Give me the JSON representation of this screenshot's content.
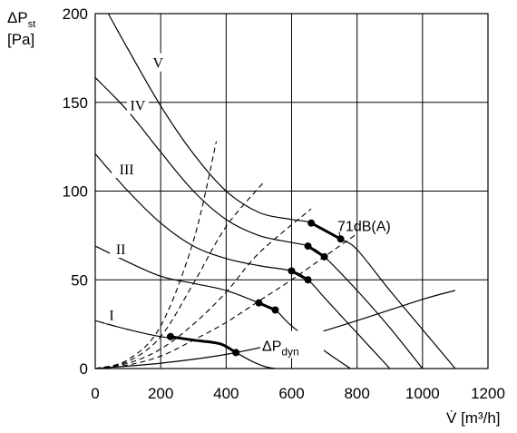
{
  "chart_data": {
    "type": "line",
    "y_axis": {
      "label_main": "ΔP",
      "label_sub": "st",
      "unit": "[Pa]",
      "ticks": [
        0,
        50,
        100,
        150,
        200
      ],
      "range": [
        0,
        200
      ]
    },
    "x_axis": {
      "label_main": "V̇",
      "unit": "[m³/h]",
      "ticks": [
        0,
        200,
        400,
        600,
        800,
        1000,
        1200
      ],
      "range": [
        0,
        1200
      ]
    },
    "grid": true,
    "series": [
      {
        "name": "I",
        "style": "solid",
        "points": [
          [
            0,
            27
          ],
          [
            100,
            22
          ],
          [
            200,
            18
          ],
          [
            300,
            16
          ],
          [
            380,
            14
          ],
          [
            430,
            9
          ],
          [
            480,
            4
          ],
          [
            520,
            1
          ],
          [
            550,
            0
          ]
        ]
      },
      {
        "name": "II",
        "style": "solid",
        "points": [
          [
            0,
            69
          ],
          [
            100,
            60
          ],
          [
            200,
            52
          ],
          [
            300,
            48
          ],
          [
            400,
            44
          ],
          [
            500,
            37
          ],
          [
            550,
            33
          ],
          [
            600,
            24
          ],
          [
            700,
            10
          ],
          [
            780,
            0
          ]
        ]
      },
      {
        "name": "III",
        "style": "solid",
        "points": [
          [
            0,
            121
          ],
          [
            100,
            100
          ],
          [
            200,
            82
          ],
          [
            300,
            69
          ],
          [
            400,
            62
          ],
          [
            500,
            58
          ],
          [
            600,
            55
          ],
          [
            650,
            50
          ],
          [
            700,
            40
          ],
          [
            800,
            20
          ],
          [
            900,
            0
          ]
        ]
      },
      {
        "name": "IV",
        "style": "solid",
        "points": [
          [
            0,
            164
          ],
          [
            100,
            145
          ],
          [
            200,
            122
          ],
          [
            300,
            100
          ],
          [
            400,
            84
          ],
          [
            500,
            75
          ],
          [
            600,
            71
          ],
          [
            650,
            69
          ],
          [
            700,
            63
          ],
          [
            800,
            44
          ],
          [
            900,
            23
          ],
          [
            1000,
            0
          ]
        ]
      },
      {
        "name": "V",
        "style": "solid",
        "points": [
          [
            40,
            200
          ],
          [
            100,
            180
          ],
          [
            200,
            148
          ],
          [
            300,
            121
          ],
          [
            400,
            100
          ],
          [
            500,
            88
          ],
          [
            600,
            84
          ],
          [
            660,
            82
          ],
          [
            750,
            73
          ],
          [
            800,
            67
          ],
          [
            900,
            44
          ],
          [
            1000,
            22
          ],
          [
            1100,
            0
          ]
        ]
      },
      {
        "name": "ΔPdyn",
        "style": "solid",
        "points": [
          [
            0,
            0
          ],
          [
            200,
            3
          ],
          [
            400,
            8
          ],
          [
            600,
            16
          ],
          [
            800,
            27
          ],
          [
            1000,
            39
          ],
          [
            1100,
            44
          ]
        ]
      }
    ],
    "system_lines": [
      {
        "style": "dashed",
        "points": [
          [
            0,
            0
          ],
          [
            100,
            5
          ],
          [
            200,
            24
          ],
          [
            300,
            72
          ],
          [
            370,
            128
          ]
        ]
      },
      {
        "style": "dashed",
        "points": [
          [
            0,
            0
          ],
          [
            100,
            4
          ],
          [
            200,
            18
          ],
          [
            300,
            48
          ],
          [
            400,
            80
          ],
          [
            515,
            105
          ]
        ]
      },
      {
        "style": "dashed",
        "points": [
          [
            0,
            0
          ],
          [
            100,
            3
          ],
          [
            200,
            11
          ],
          [
            300,
            25
          ],
          [
            400,
            43
          ],
          [
            500,
            65
          ],
          [
            660,
            90
          ]
        ]
      },
      {
        "style": "dashed",
        "points": [
          [
            0,
            0
          ],
          [
            100,
            2
          ],
          [
            200,
            7
          ],
          [
            300,
            16
          ],
          [
            400,
            26
          ],
          [
            500,
            38
          ],
          [
            600,
            50
          ],
          [
            700,
            63
          ],
          [
            800,
            76
          ]
        ]
      }
    ],
    "operating_segments": [
      {
        "style": "bold",
        "points": [
          [
            230,
            18
          ],
          [
            300,
            16
          ],
          [
            380,
            14
          ],
          [
            430,
            9
          ]
        ]
      },
      {
        "style": "bold",
        "points": [
          [
            500,
            37
          ],
          [
            550,
            33
          ]
        ]
      },
      {
        "style": "bold",
        "points": [
          [
            600,
            55
          ],
          [
            650,
            50
          ]
        ]
      },
      {
        "style": "bold",
        "points": [
          [
            650,
            69
          ],
          [
            700,
            63
          ]
        ]
      },
      {
        "style": "bold",
        "points": [
          [
            660,
            82
          ],
          [
            750,
            73
          ]
        ]
      }
    ],
    "markers": [
      [
        230,
        18
      ],
      [
        430,
        9
      ],
      [
        500,
        37
      ],
      [
        550,
        33
      ],
      [
        600,
        55
      ],
      [
        650,
        50
      ],
      [
        650,
        69
      ],
      [
        700,
        63
      ],
      [
        660,
        82
      ],
      [
        750,
        73
      ]
    ],
    "curve_labels": [
      {
        "text": "I",
        "x": 50,
        "y": 30
      },
      {
        "text": "II",
        "x": 78,
        "y": 67
      },
      {
        "text": "III",
        "x": 96,
        "y": 112
      },
      {
        "text": "IV",
        "x": 130,
        "y": 148
      },
      {
        "text": "V",
        "x": 192,
        "y": 172
      }
    ],
    "annotations": [
      {
        "text": "71dB(A)",
        "x": 740,
        "y": 80
      },
      {
        "text_main": "ΔP",
        "text_sub": "dyn",
        "x": 510,
        "y": 10
      }
    ],
    "colors": {
      "line": "#000000",
      "grid": "#000000",
      "background": "#ffffff"
    }
  }
}
